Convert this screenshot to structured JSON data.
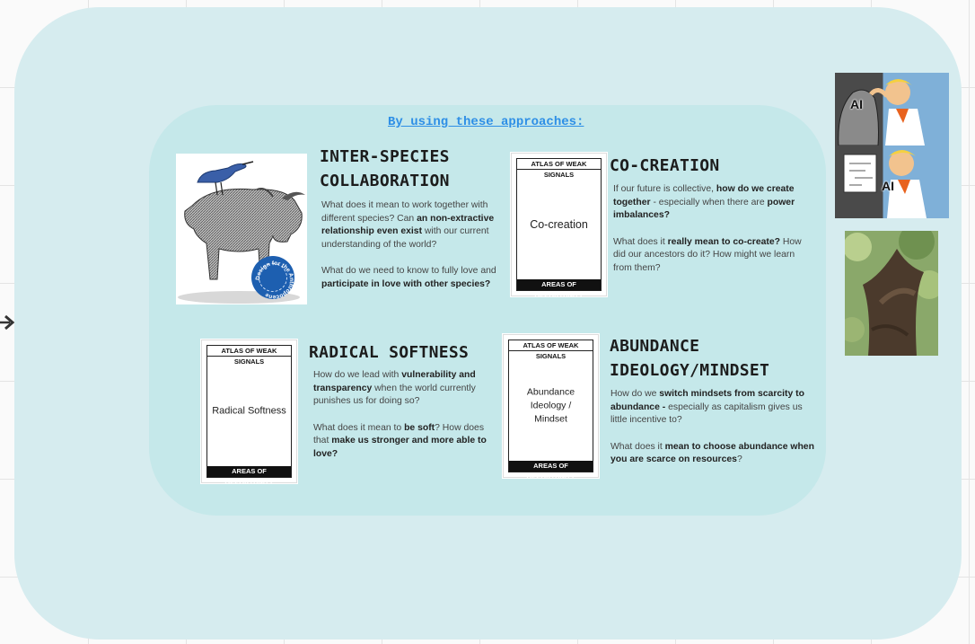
{
  "heading": "By using these approaches:",
  "card_header": "ATLAS OF WEAK SIGNALS",
  "card_footer": "AREAS OF OPPORTUNITY",
  "seal_text": "Design for the Anthropocene",
  "meme_label": "AI",
  "sections": {
    "interspecies": {
      "title_line1": "INTER-SPECIES",
      "title_line2": "COLLABORATION",
      "p1_a": "What does it mean to work together with different species? Can ",
      "p1_b": "an non-extractive relationship even exist",
      "p1_c": " with our current understanding of the world?",
      "p2_a": "What do we need to know to fully love and ",
      "p2_b": "participate in love with other species?"
    },
    "cocreation": {
      "title": "CO-CREATION",
      "card_label": "Co-creation",
      "p1_a": "If our future is collective, ",
      "p1_b": "how do we create together",
      "p1_c": " - especially when there are ",
      "p1_d": "power imbalances?",
      "p2_a": "What does it ",
      "p2_b": "really mean to co-create?",
      "p2_c": " How did our ancestors do it? How might we learn from them?"
    },
    "softness": {
      "title": "RADICAL SOFTNESS",
      "card_label": "Radical Softness",
      "p1_a": "How do we lead with ",
      "p1_b": "vulnerability and transparency",
      "p1_c": " when the world currently punishes us for doing so?",
      "p2_a": "What does it mean to ",
      "p2_b": "be soft",
      "p2_c": "? How does that ",
      "p2_d": "make us stronger and more able to love?"
    },
    "abundance": {
      "title_line1": "ABUNDANCE",
      "title_line2": "IDEOLOGY/MINDSET",
      "card_label": "Abundance Ideology / Mindset",
      "p1_a": "How do we ",
      "p1_b": "switch mindsets from scarcity to abundance -",
      "p1_c": " especially as capitalism gives us little incentive to?",
      "p2_a": "What does it ",
      "p2_b": "mean to choose abundance when you are scarce on resources",
      "p2_c": "?"
    }
  }
}
